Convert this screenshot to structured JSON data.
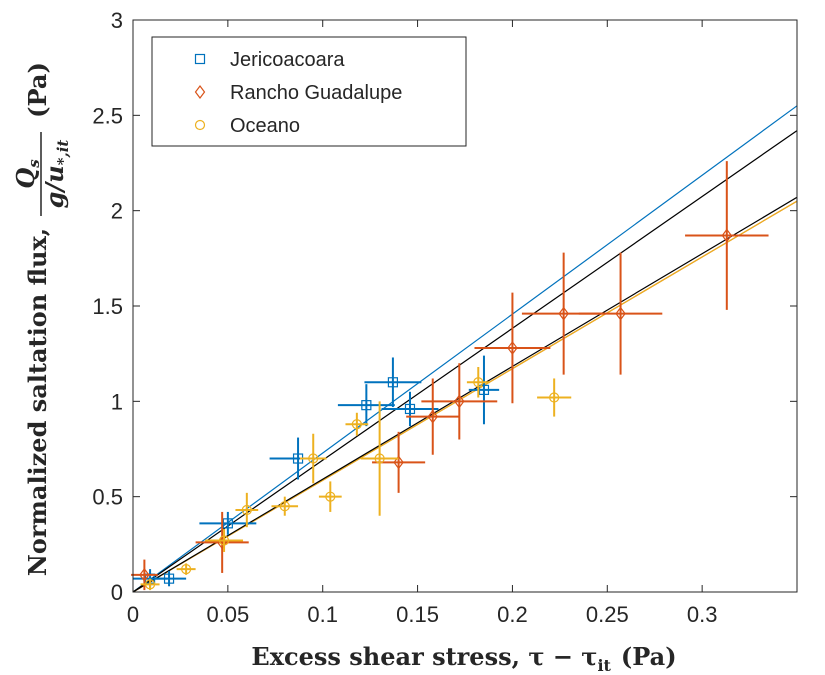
{
  "chart_data": {
    "type": "scatter",
    "xlabel": "Excess shear stress, τ − τ",
    "xlabel_sub": "it",
    "xlabel_unit": "(Pa)",
    "ylabel": "Normalized saltation flux,",
    "ylabel_frac_num": "Q",
    "ylabel_frac_num_sub": "s",
    "ylabel_frac_den": "g/u",
    "ylabel_frac_den_sub": "*,it",
    "ylabel_unit": "(Pa)",
    "xlim": [
      0,
      0.35
    ],
    "ylim": [
      0,
      3
    ],
    "xticks": [
      0,
      0.05,
      0.1,
      0.15,
      0.2,
      0.25,
      0.3
    ],
    "xtick_labels": [
      "0",
      "0.05",
      "0.1",
      "0.15",
      "0.2",
      "0.25",
      "0.3"
    ],
    "yticks": [
      0,
      0.5,
      1,
      1.5,
      2,
      2.5,
      3
    ],
    "ytick_labels": [
      "0",
      "0.5",
      "1",
      "1.5",
      "2",
      "2.5",
      "3"
    ],
    "legend_position": "top-left",
    "series": [
      {
        "name": "Jericoacoara",
        "marker": "square",
        "color": "#0072BD",
        "points": [
          {
            "x": 0.009,
            "y": 0.07,
            "xerr": 0.009,
            "yerr": 0.05
          },
          {
            "x": 0.019,
            "y": 0.07,
            "xerr": 0.009,
            "yerr": 0.04
          },
          {
            "x": 0.05,
            "y": 0.36,
            "xerr": 0.015,
            "yerr": 0.06
          },
          {
            "x": 0.087,
            "y": 0.7,
            "xerr": 0.015,
            "yerr": 0.11
          },
          {
            "x": 0.123,
            "y": 0.98,
            "xerr": 0.015,
            "yerr": 0.11
          },
          {
            "x": 0.137,
            "y": 1.1,
            "xerr": 0.015,
            "yerr": 0.13
          },
          {
            "x": 0.146,
            "y": 0.96,
            "xerr": 0.015,
            "yerr": 0.09
          },
          {
            "x": 0.185,
            "y": 1.06,
            "xerr": 0.008,
            "yerr": 0.18
          }
        ],
        "fit_line": [
          [
            0,
            0.0
          ],
          [
            0.35,
            2.55
          ]
        ]
      },
      {
        "name": "Rancho Guadalupe",
        "marker": "diamond",
        "color": "#D95319",
        "points": [
          {
            "x": 0.006,
            "y": 0.09,
            "xerr": 0.007,
            "yerr": 0.08
          },
          {
            "x": 0.047,
            "y": 0.26,
            "xerr": 0.014,
            "yerr": 0.16
          },
          {
            "x": 0.14,
            "y": 0.68,
            "xerr": 0.014,
            "yerr": 0.16
          },
          {
            "x": 0.158,
            "y": 0.92,
            "xerr": 0.014,
            "yerr": 0.2
          },
          {
            "x": 0.172,
            "y": 1.0,
            "xerr": 0.02,
            "yerr": 0.2
          },
          {
            "x": 0.2,
            "y": 1.28,
            "xerr": 0.02,
            "yerr": 0.29
          },
          {
            "x": 0.227,
            "y": 1.46,
            "xerr": 0.022,
            "yerr": 0.32
          },
          {
            "x": 0.257,
            "y": 1.46,
            "xerr": 0.022,
            "yerr": 0.32
          },
          {
            "x": 0.313,
            "y": 1.87,
            "xerr": 0.022,
            "yerr": 0.39
          }
        ],
        "fit_line": [
          [
            0,
            0.0
          ],
          [
            0.35,
            2.05
          ]
        ]
      },
      {
        "name": "Oceano",
        "marker": "circle",
        "color": "#EDB120",
        "points": [
          {
            "x": 0.009,
            "y": 0.04,
            "xerr": 0.005,
            "yerr": 0.03
          },
          {
            "x": 0.028,
            "y": 0.12,
            "xerr": 0.005,
            "yerr": 0.03
          },
          {
            "x": 0.048,
            "y": 0.27,
            "xerr": 0.01,
            "yerr": 0.06
          },
          {
            "x": 0.06,
            "y": 0.43,
            "xerr": 0.006,
            "yerr": 0.09
          },
          {
            "x": 0.08,
            "y": 0.45,
            "xerr": 0.007,
            "yerr": 0.05
          },
          {
            "x": 0.095,
            "y": 0.7,
            "xerr": 0.007,
            "yerr": 0.13
          },
          {
            "x": 0.104,
            "y": 0.5,
            "xerr": 0.006,
            "yerr": 0.08
          },
          {
            "x": 0.118,
            "y": 0.88,
            "xerr": 0.006,
            "yerr": 0.06
          },
          {
            "x": 0.13,
            "y": 0.7,
            "xerr": 0.01,
            "yerr": 0.3
          },
          {
            "x": 0.182,
            "y": 1.1,
            "xerr": 0.006,
            "yerr": 0.08
          },
          {
            "x": 0.222,
            "y": 1.02,
            "xerr": 0.009,
            "yerr": 0.1
          }
        ],
        "fit_line": [
          [
            0,
            0.0
          ],
          [
            0.35,
            2.05
          ]
        ]
      }
    ],
    "combined_fit_lines": [
      {
        "color": "#000000",
        "points": [
          [
            0,
            0.0
          ],
          [
            0.35,
            2.42
          ]
        ]
      },
      {
        "color": "#000000",
        "points": [
          [
            0,
            0.0
          ],
          [
            0.35,
            2.07
          ]
        ]
      }
    ]
  }
}
